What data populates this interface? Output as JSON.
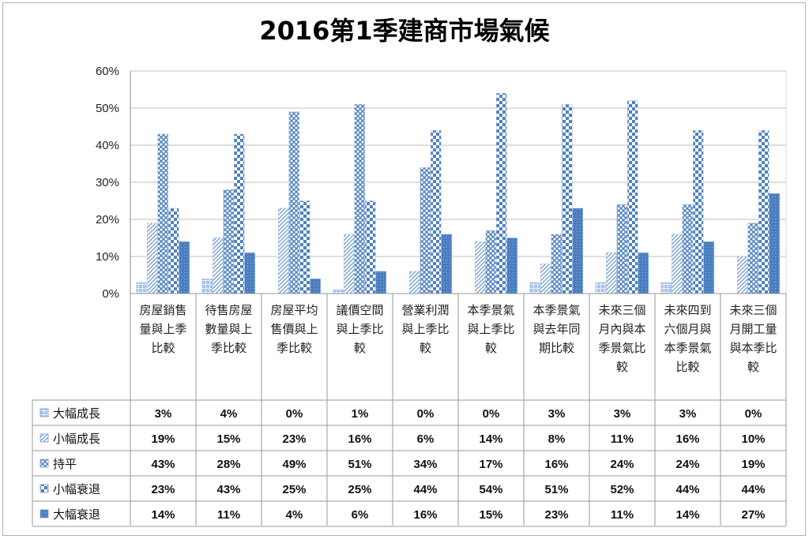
{
  "chart_data": {
    "type": "bar",
    "title": "2016第1季建商市場氣候",
    "ylim": [
      0,
      60
    ],
    "yticks": [
      "0%",
      "10%",
      "20%",
      "30%",
      "40%",
      "50%",
      "60%"
    ],
    "grid": "horizontal",
    "legend": "data-table-left",
    "categories": [
      "房屋銷售量與上季比較",
      "待售房屋數量與上季比較",
      "房屋平均售價與上季比較",
      "議價空間與上季比較",
      "營業利潤與上季比較",
      "本季景氣與上季比較",
      "本季景氣與去年同期比較",
      "未來三個月內與本季景氣比較",
      "未來四到六個月與本季景氣比較",
      "未來三個月開工量與本季比較"
    ],
    "series": [
      {
        "name": "大幅成長",
        "values": [
          3,
          4,
          0,
          1,
          0,
          0,
          3,
          3,
          3,
          0
        ],
        "labels": [
          "3%",
          "4%",
          "0%",
          "1%",
          "0%",
          "0%",
          "3%",
          "3%",
          "3%",
          "0%"
        ],
        "color": "#5b8fd0",
        "pattern": "small-grid"
      },
      {
        "name": "小幅成長",
        "values": [
          19,
          15,
          23,
          16,
          6,
          14,
          8,
          11,
          16,
          10
        ],
        "labels": [
          "19%",
          "15%",
          "23%",
          "16%",
          "6%",
          "14%",
          "8%",
          "11%",
          "16%",
          "10%"
        ],
        "color": "#5b8fd0",
        "pattern": "diagonal-lines"
      },
      {
        "name": "持平",
        "values": [
          43,
          28,
          49,
          51,
          34,
          17,
          16,
          24,
          24,
          19
        ],
        "labels": [
          "43%",
          "28%",
          "49%",
          "51%",
          "34%",
          "17%",
          "16%",
          "24%",
          "24%",
          "19%"
        ],
        "color": "#4f81bd",
        "pattern": "cross-hatch"
      },
      {
        "name": "小幅衰退",
        "values": [
          23,
          43,
          25,
          25,
          44,
          54,
          51,
          52,
          44,
          44
        ],
        "labels": [
          "23%",
          "43%",
          "25%",
          "25%",
          "44%",
          "54%",
          "51%",
          "52%",
          "44%",
          "44%"
        ],
        "color": "#4f81bd",
        "pattern": "checker"
      },
      {
        "name": "大幅衰退",
        "values": [
          14,
          11,
          4,
          6,
          16,
          15,
          23,
          11,
          14,
          27
        ],
        "labels": [
          "14%",
          "11%",
          "4%",
          "6%",
          "16%",
          "15%",
          "23%",
          "11%",
          "14%",
          "27%"
        ],
        "color": "#4a7ec0",
        "pattern": "dense-dots"
      }
    ]
  }
}
